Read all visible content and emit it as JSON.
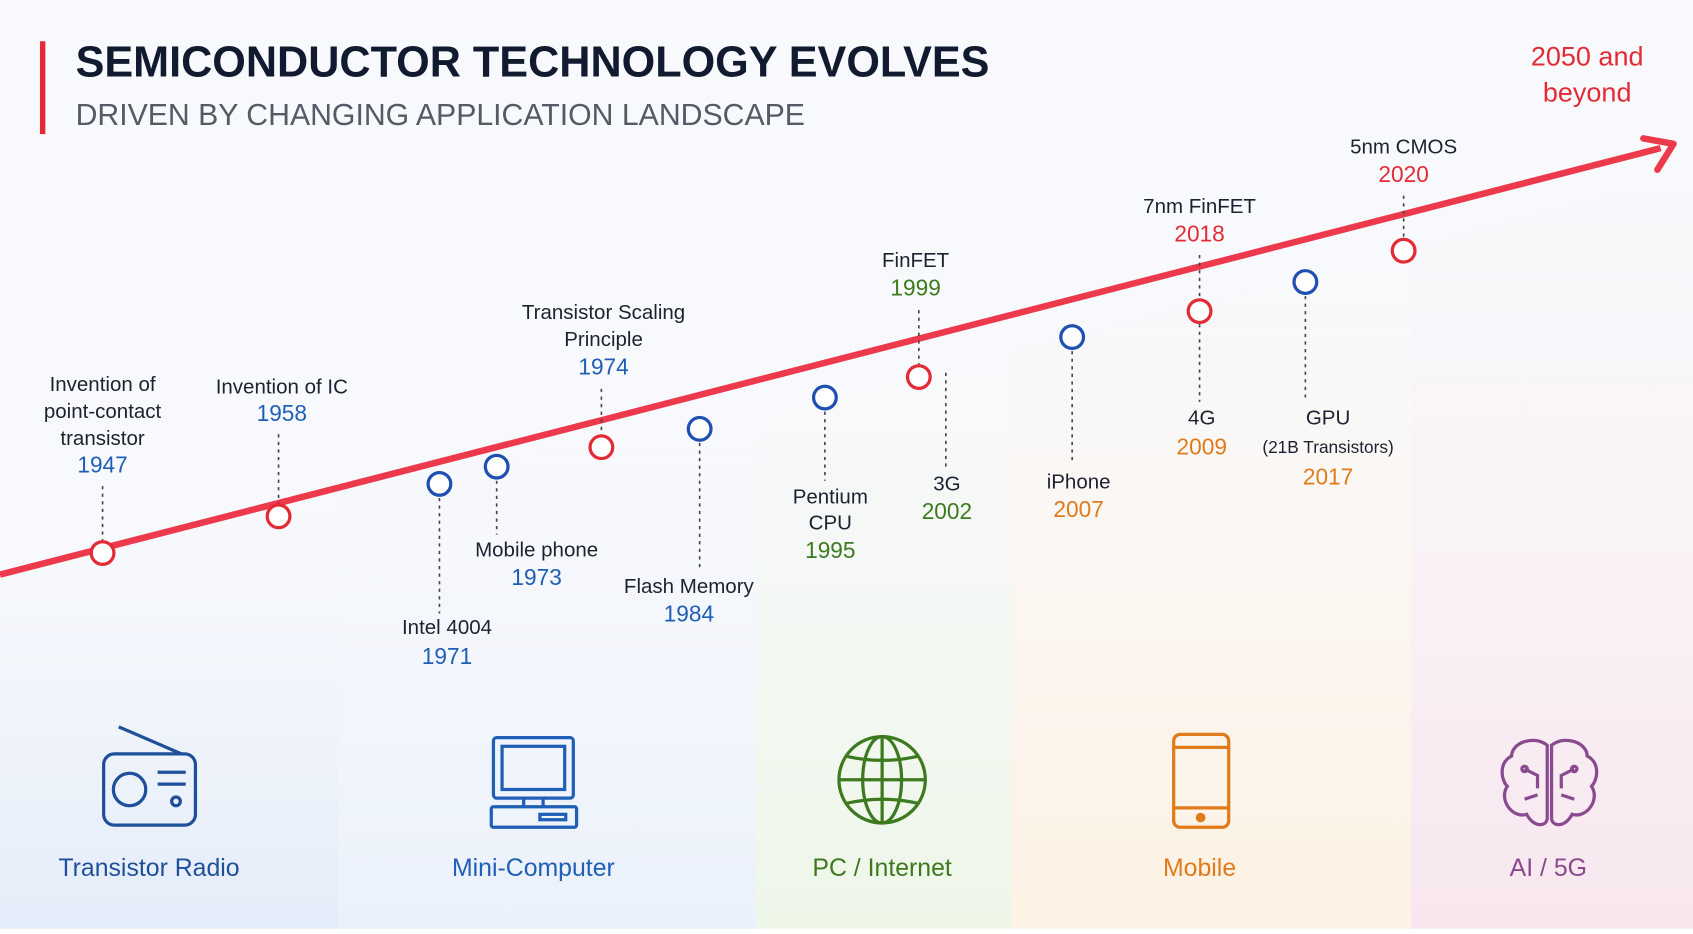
{
  "header": {
    "title": "SEMICONDUCTOR TECHNOLOGY EVOLVES",
    "subtitle": "DRIVEN BY CHANGING APPLICATION LANDSCAPE"
  },
  "end_label": [
    "2050 and",
    "beyond"
  ],
  "milestones": [
    {
      "lines": [
        "Invention of",
        "point-contact",
        "transistor"
      ],
      "year": "1947"
    },
    {
      "lines": [
        "Invention of IC"
      ],
      "year": "1958"
    },
    {
      "lines": [
        "Intel 4004"
      ],
      "year": "1971"
    },
    {
      "lines": [
        "Mobile phone"
      ],
      "year": "1973"
    },
    {
      "lines": [
        "Transistor Scaling",
        "Principle"
      ],
      "year": "1974"
    },
    {
      "lines": [
        "Flash Memory"
      ],
      "year": "1984"
    },
    {
      "lines": [
        "Pentium",
        "CPU"
      ],
      "year": "1995"
    },
    {
      "lines": [
        "FinFET"
      ],
      "year": "1999"
    },
    {
      "lines": [
        "3G"
      ],
      "year": "2002"
    },
    {
      "lines": [
        "iPhone"
      ],
      "year": "2007"
    },
    {
      "lines": [
        "7nm FinFET"
      ],
      "year": "2018"
    },
    {
      "lines": [
        "4G"
      ],
      "year": "2009"
    },
    {
      "lines": [
        "GPU",
        "(21B Transistors)"
      ],
      "year": "2017"
    },
    {
      "lines": [
        "5nm CMOS"
      ],
      "year": "2020"
    }
  ],
  "eras": [
    {
      "label": "Transistor Radio"
    },
    {
      "label": "Mini-Computer"
    },
    {
      "label": "PC / Internet"
    },
    {
      "label": "Mobile"
    },
    {
      "label": "AI / 5G"
    }
  ]
}
